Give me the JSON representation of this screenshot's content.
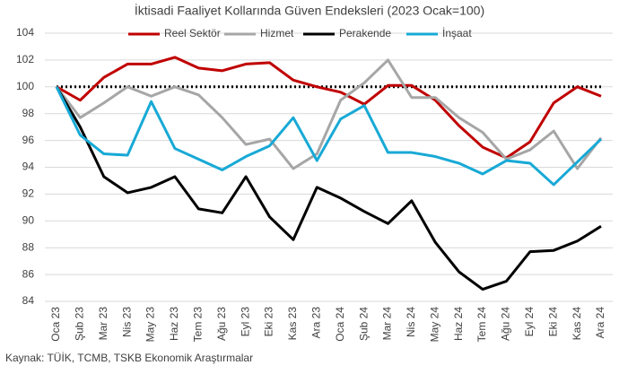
{
  "chart_data": {
    "type": "line",
    "title": "İktisadi Faaliyet Kollarında Güven Endeksleri (2023 Ocak=100)",
    "source": "Kaynak: TÜİK, TCMB, TSKB Ekonomik Araştırmalar",
    "categories": [
      "Oca 23",
      "Şub 23",
      "Mar 23",
      "Nis 23",
      "May 23",
      "Haz 23",
      "Tem 23",
      "Ağu 23",
      "Eyl 23",
      "Eki 23",
      "Kas 23",
      "Ara 23",
      "Oca 24",
      "Şub 24",
      "Mar 24",
      "Nis 24",
      "May 24",
      "Haz 24",
      "Tem 24",
      "Ağu 24",
      "Eyl 24",
      "Eki 24",
      "Kas 24",
      "Ara 24"
    ],
    "series": [
      {
        "name": "Reel Sektör",
        "color": "#c00000",
        "values": [
          100,
          99.0,
          100.7,
          101.7,
          101.7,
          102.2,
          101.4,
          101.2,
          101.7,
          101.8,
          100.5,
          100.0,
          99.6,
          98.7,
          100.1,
          100.1,
          99.0,
          97.1,
          95.5,
          94.7,
          95.9,
          98.8,
          100.0,
          99.3
        ]
      },
      {
        "name": "Hizmet",
        "color": "#a6a6a6",
        "values": [
          100,
          97.7,
          98.8,
          100.0,
          99.3,
          100.0,
          99.4,
          97.7,
          95.7,
          96.1,
          93.9,
          95.0,
          99.0,
          100.3,
          102.0,
          99.2,
          99.2,
          97.7,
          96.6,
          94.6,
          95.3,
          96.7,
          93.9,
          96.2
        ]
      },
      {
        "name": "Perakende",
        "color": "#000000",
        "values": [
          100,
          97.0,
          93.3,
          92.1,
          92.5,
          93.3,
          90.9,
          90.6,
          93.3,
          90.3,
          88.6,
          92.5,
          91.7,
          90.7,
          89.8,
          91.5,
          88.4,
          86.2,
          84.9,
          85.5,
          87.7,
          87.8,
          88.5,
          89.6
        ]
      },
      {
        "name": "İnşaat",
        "color": "#17a9d6",
        "values": [
          100,
          96.4,
          95.0,
          94.9,
          98.9,
          95.4,
          94.6,
          93.8,
          94.8,
          95.6,
          97.7,
          94.5,
          97.6,
          98.6,
          95.1,
          95.1,
          94.8,
          94.3,
          93.5,
          94.5,
          94.3,
          92.7,
          94.4,
          96.1
        ]
      }
    ],
    "reference_line": 100,
    "ylim": [
      84,
      104
    ],
    "yticks": [
      84,
      86,
      88,
      90,
      92,
      94,
      96,
      98,
      100,
      102,
      104
    ],
    "grid": true
  }
}
